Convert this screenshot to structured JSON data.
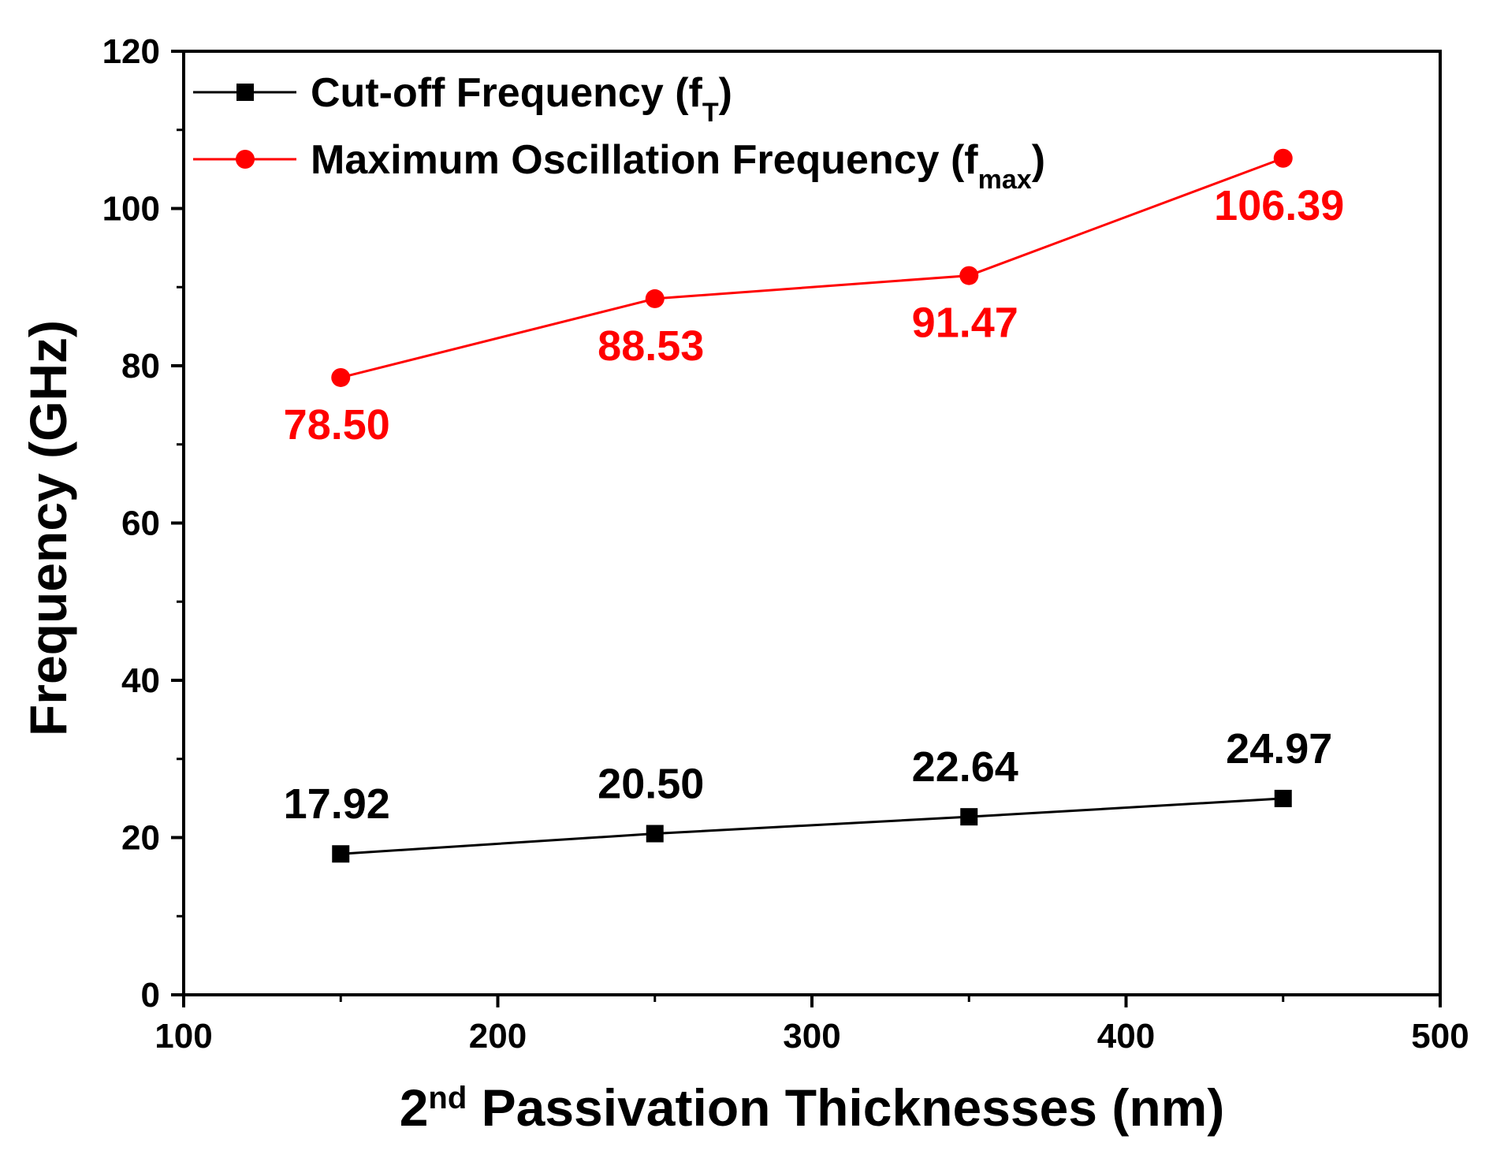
{
  "chart_data": {
    "type": "line",
    "title": "",
    "xlabel_sup": "nd",
    "xlabel_prefix": "2",
    "xlabel_rest": " Passivation Thicknesses (nm)",
    "ylabel": "Frequency (GHz)",
    "xlim": [
      100,
      500
    ],
    "ylim": [
      0,
      120
    ],
    "x_ticks": [
      100,
      200,
      300,
      400,
      500
    ],
    "y_ticks": [
      0,
      20,
      40,
      60,
      80,
      100,
      120
    ],
    "x_minor_ticks": [
      150,
      250,
      350,
      450
    ],
    "y_minor_ticks": [
      10,
      30,
      50,
      70,
      90,
      110
    ],
    "grid": false,
    "legend_position": "top-left",
    "x": [
      150,
      250,
      350,
      450
    ],
    "series": [
      {
        "name": "Cut-off Frequency (fT)",
        "legend_main": "Cut-off Frequency (f",
        "legend_sub": "T",
        "legend_close": ")",
        "color": "#000000",
        "marker": "square",
        "values": [
          17.92,
          20.5,
          22.64,
          24.97
        ],
        "labels": [
          "17.92",
          "20.50",
          "22.64",
          "24.97"
        ],
        "label_placement": "above"
      },
      {
        "name": "Maximum Oscillation Frequency (fmax)",
        "legend_main": "Maximum Oscillation Frequency (f",
        "legend_sub": "max",
        "legend_close": ")",
        "color": "#ff0000",
        "marker": "circle",
        "values": [
          78.5,
          88.53,
          91.47,
          106.39
        ],
        "labels": [
          "78.50",
          "88.53",
          "91.47",
          "106.39"
        ],
        "label_placement": "below"
      }
    ]
  }
}
